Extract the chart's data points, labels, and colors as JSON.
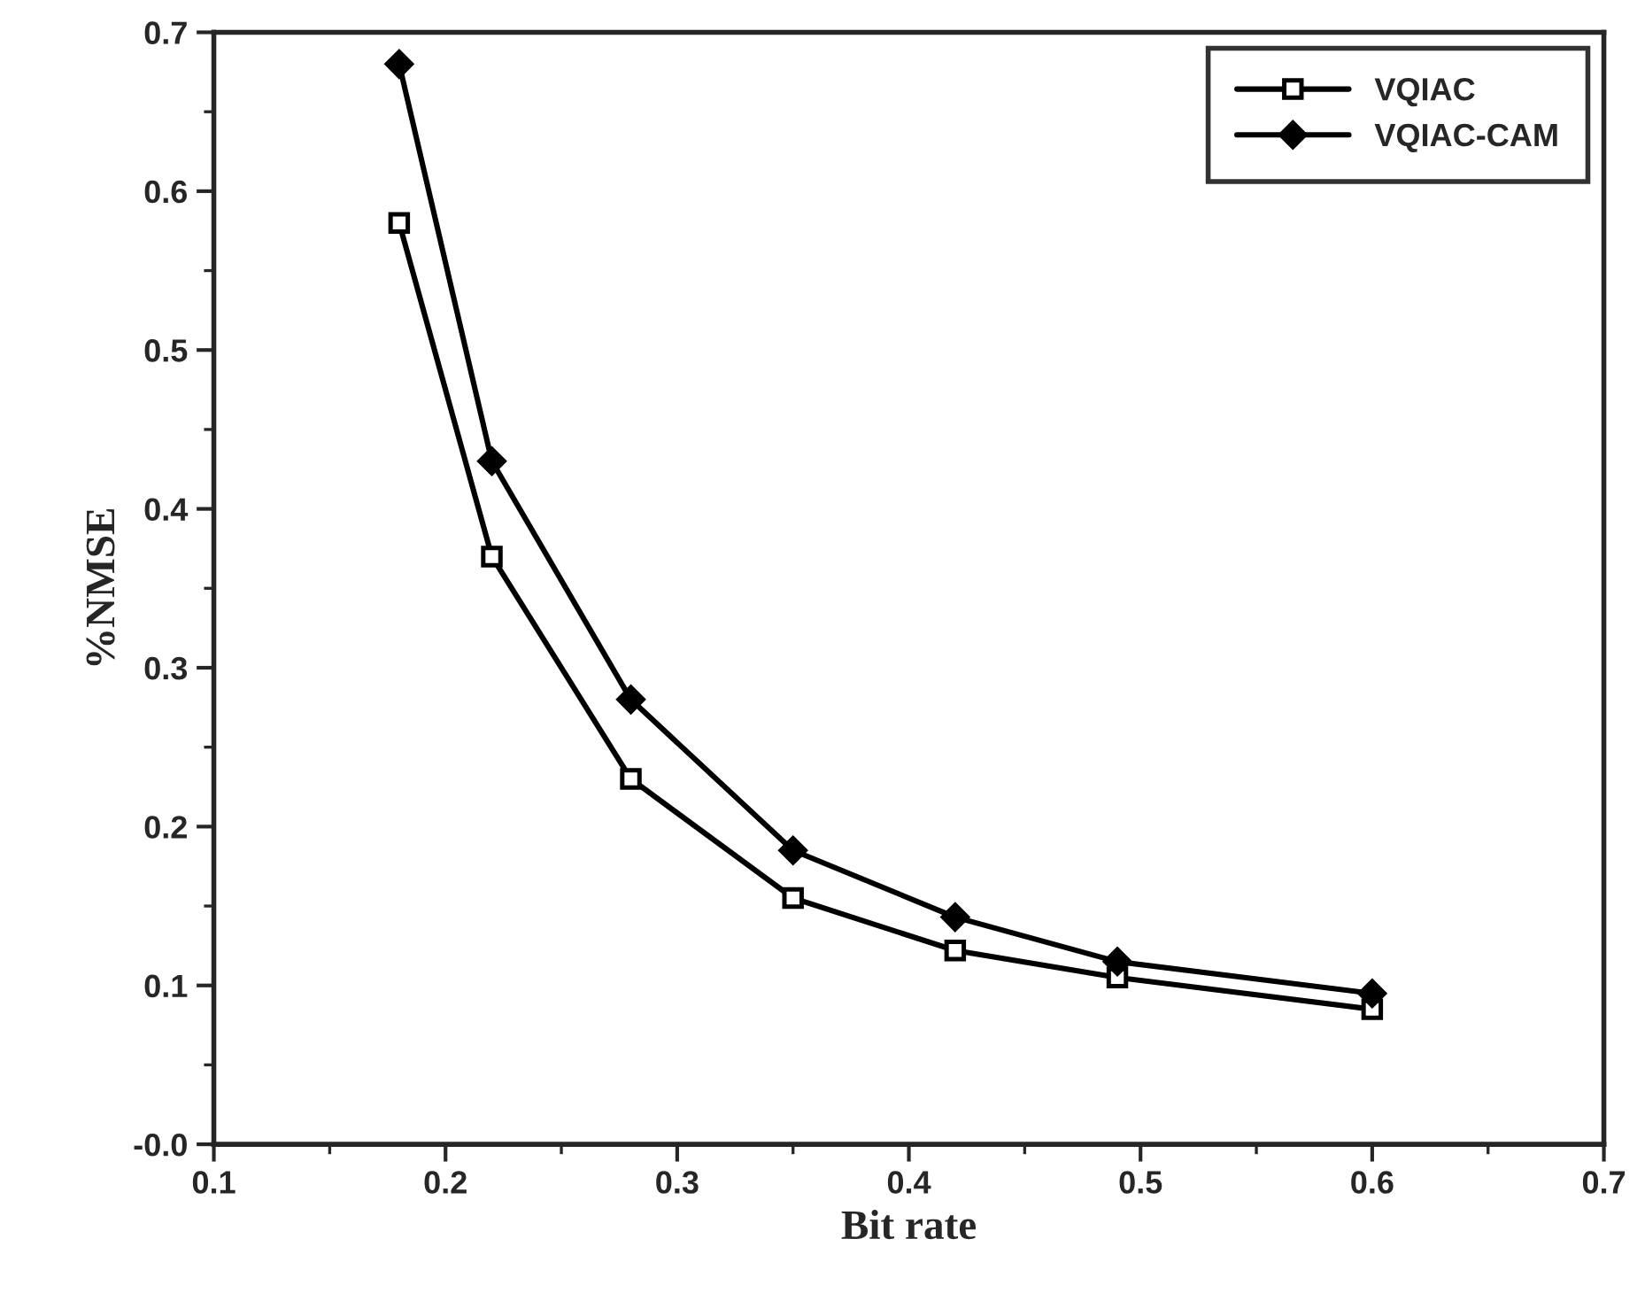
{
  "chart_data": {
    "type": "line",
    "xlabel": "Bit rate",
    "ylabel": "%NMSE",
    "x": [
      0.18,
      0.22,
      0.28,
      0.35,
      0.42,
      0.49,
      0.6
    ],
    "series": [
      {
        "name": "VQIAC",
        "color": "#000000",
        "marker": "square",
        "values": [
          0.58,
          0.37,
          0.23,
          0.155,
          0.122,
          0.105,
          0.085
        ]
      },
      {
        "name": "VQIAC-CAM",
        "color": "#000000",
        "marker": "diamond",
        "values": [
          0.68,
          0.43,
          0.28,
          0.185,
          0.143,
          0.115,
          0.095
        ]
      }
    ],
    "xlim": [
      0.1,
      0.7
    ],
    "xticks": [
      0.1,
      0.2,
      0.3,
      0.4,
      0.5,
      0.6,
      0.7
    ],
    "ylim": [
      0,
      0.7
    ],
    "yticks": [
      {
        "value": 0,
        "label": "-0.0"
      },
      0.1,
      0.2,
      0.3,
      0.4,
      0.5,
      0.6,
      0.7
    ],
    "grid": false,
    "legend": "top right",
    "line_style": "solid"
  }
}
